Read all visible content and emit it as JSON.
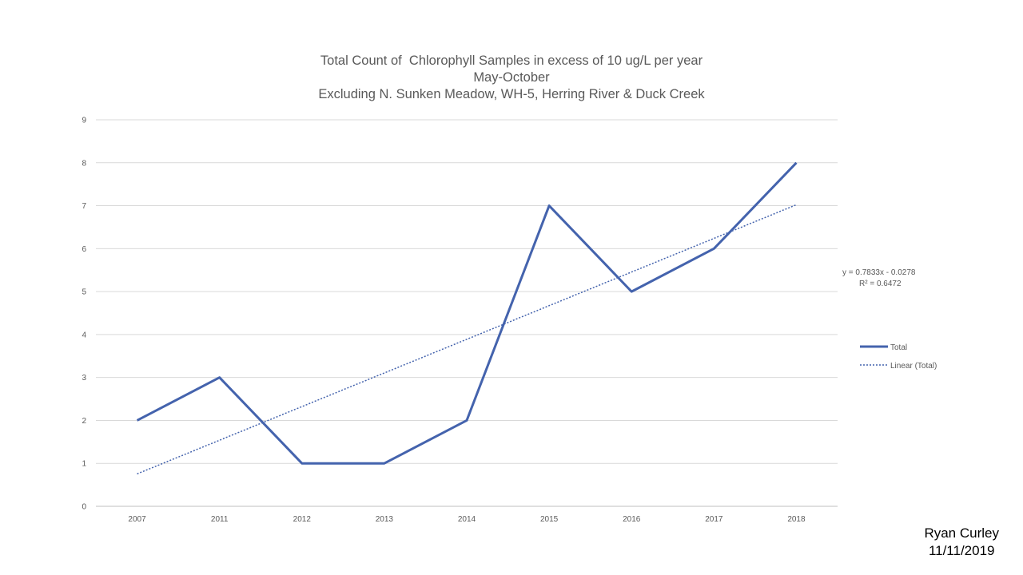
{
  "chart_data": {
    "type": "line",
    "title": [
      "Total Count of  Chlorophyll Samples in excess of 10 ug/L per year",
      "May-October",
      "Excluding N. Sunken Meadow, WH-5, Herring River & Duck Creek"
    ],
    "categories": [
      "2007",
      "2011",
      "2012",
      "2013",
      "2014",
      "2015",
      "2016",
      "2017",
      "2018"
    ],
    "series": [
      {
        "name": "Total",
        "values": [
          2,
          3,
          1,
          1,
          2,
          7,
          5,
          6,
          8
        ],
        "color": "#4463AD"
      }
    ],
    "trendline": {
      "name": "Linear (Total)",
      "slope": 0.7833,
      "intercept": -0.0278,
      "equation": "y = 0.7833x - 0.0278",
      "r2": "R² = 0.6472",
      "color": "#4463AD"
    },
    "ylim": [
      0,
      9
    ],
    "yticks": [
      0,
      1,
      2,
      3,
      4,
      5,
      6,
      7,
      8,
      9
    ],
    "grid": true,
    "legend_position": "right",
    "xlabel": "",
    "ylabel": ""
  },
  "author": {
    "name": "Ryan Curley",
    "date": "11/11/2019"
  }
}
